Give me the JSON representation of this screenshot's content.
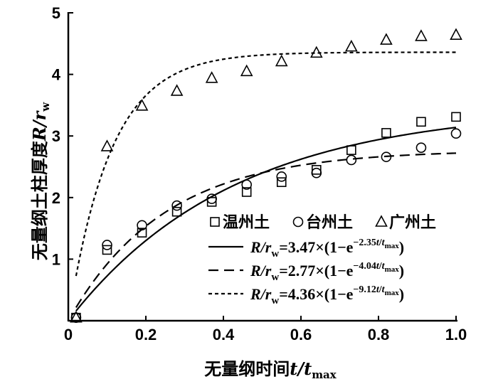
{
  "chart_data": {
    "type": "scatter",
    "xlabel": "无量纲时间",
    "xlabel_var": "t/t",
    "xlabel_sub": "max",
    "ylabel": "无量纲土柱厚度",
    "ylabel_var": "R/r",
    "ylabel_sub": "w",
    "xlim": [
      0,
      1.0
    ],
    "ylim": [
      0,
      5
    ],
    "xticks": [
      0,
      0.2,
      0.4,
      0.6,
      0.8,
      1.0
    ],
    "xtick_labels": [
      "0",
      "0.2",
      "0.4",
      "0.6",
      "0.8",
      "1.0"
    ],
    "yticks": [
      1,
      2,
      3,
      4,
      5
    ],
    "ytick_labels": [
      "1",
      "2",
      "3",
      "4",
      "5"
    ],
    "legend_position": "lower-right",
    "series": [
      {
        "name": "温州土",
        "marker": "square",
        "x": [
          0.02,
          0.1,
          0.19,
          0.28,
          0.37,
          0.46,
          0.55,
          0.64,
          0.73,
          0.82,
          0.91,
          1.0
        ],
        "y": [
          0.05,
          1.15,
          1.43,
          1.77,
          1.93,
          2.09,
          2.25,
          2.45,
          2.77,
          3.05,
          3.23,
          3.31
        ]
      },
      {
        "name": "台州土",
        "marker": "circle",
        "x": [
          0.02,
          0.1,
          0.19,
          0.28,
          0.37,
          0.46,
          0.55,
          0.64,
          0.73,
          0.82,
          0.91,
          1.0
        ],
        "y": [
          0.05,
          1.23,
          1.55,
          1.87,
          1.98,
          2.21,
          2.34,
          2.4,
          2.61,
          2.66,
          2.81,
          3.04
        ]
      },
      {
        "name": "广州土",
        "marker": "triangle",
        "x": [
          0.02,
          0.1,
          0.19,
          0.28,
          0.37,
          0.46,
          0.55,
          0.64,
          0.73,
          0.82,
          0.91,
          1.0
        ],
        "y": [
          0.05,
          2.83,
          3.49,
          3.73,
          3.94,
          4.05,
          4.21,
          4.35,
          4.45,
          4.56,
          4.62,
          4.64
        ]
      }
    ],
    "fits": [
      {
        "style": "solid",
        "coef": 3.47,
        "rate": 2.35,
        "coef_text": "3.47",
        "rate_text": "2.35"
      },
      {
        "style": "dashed",
        "coef": 2.77,
        "rate": 4.04,
        "coef_text": "2.77",
        "rate_text": "4.04"
      },
      {
        "style": "short-dashed",
        "coef": 4.36,
        "rate": 9.12,
        "coef_text": "4.36",
        "rate_text": "9.12"
      }
    ]
  }
}
